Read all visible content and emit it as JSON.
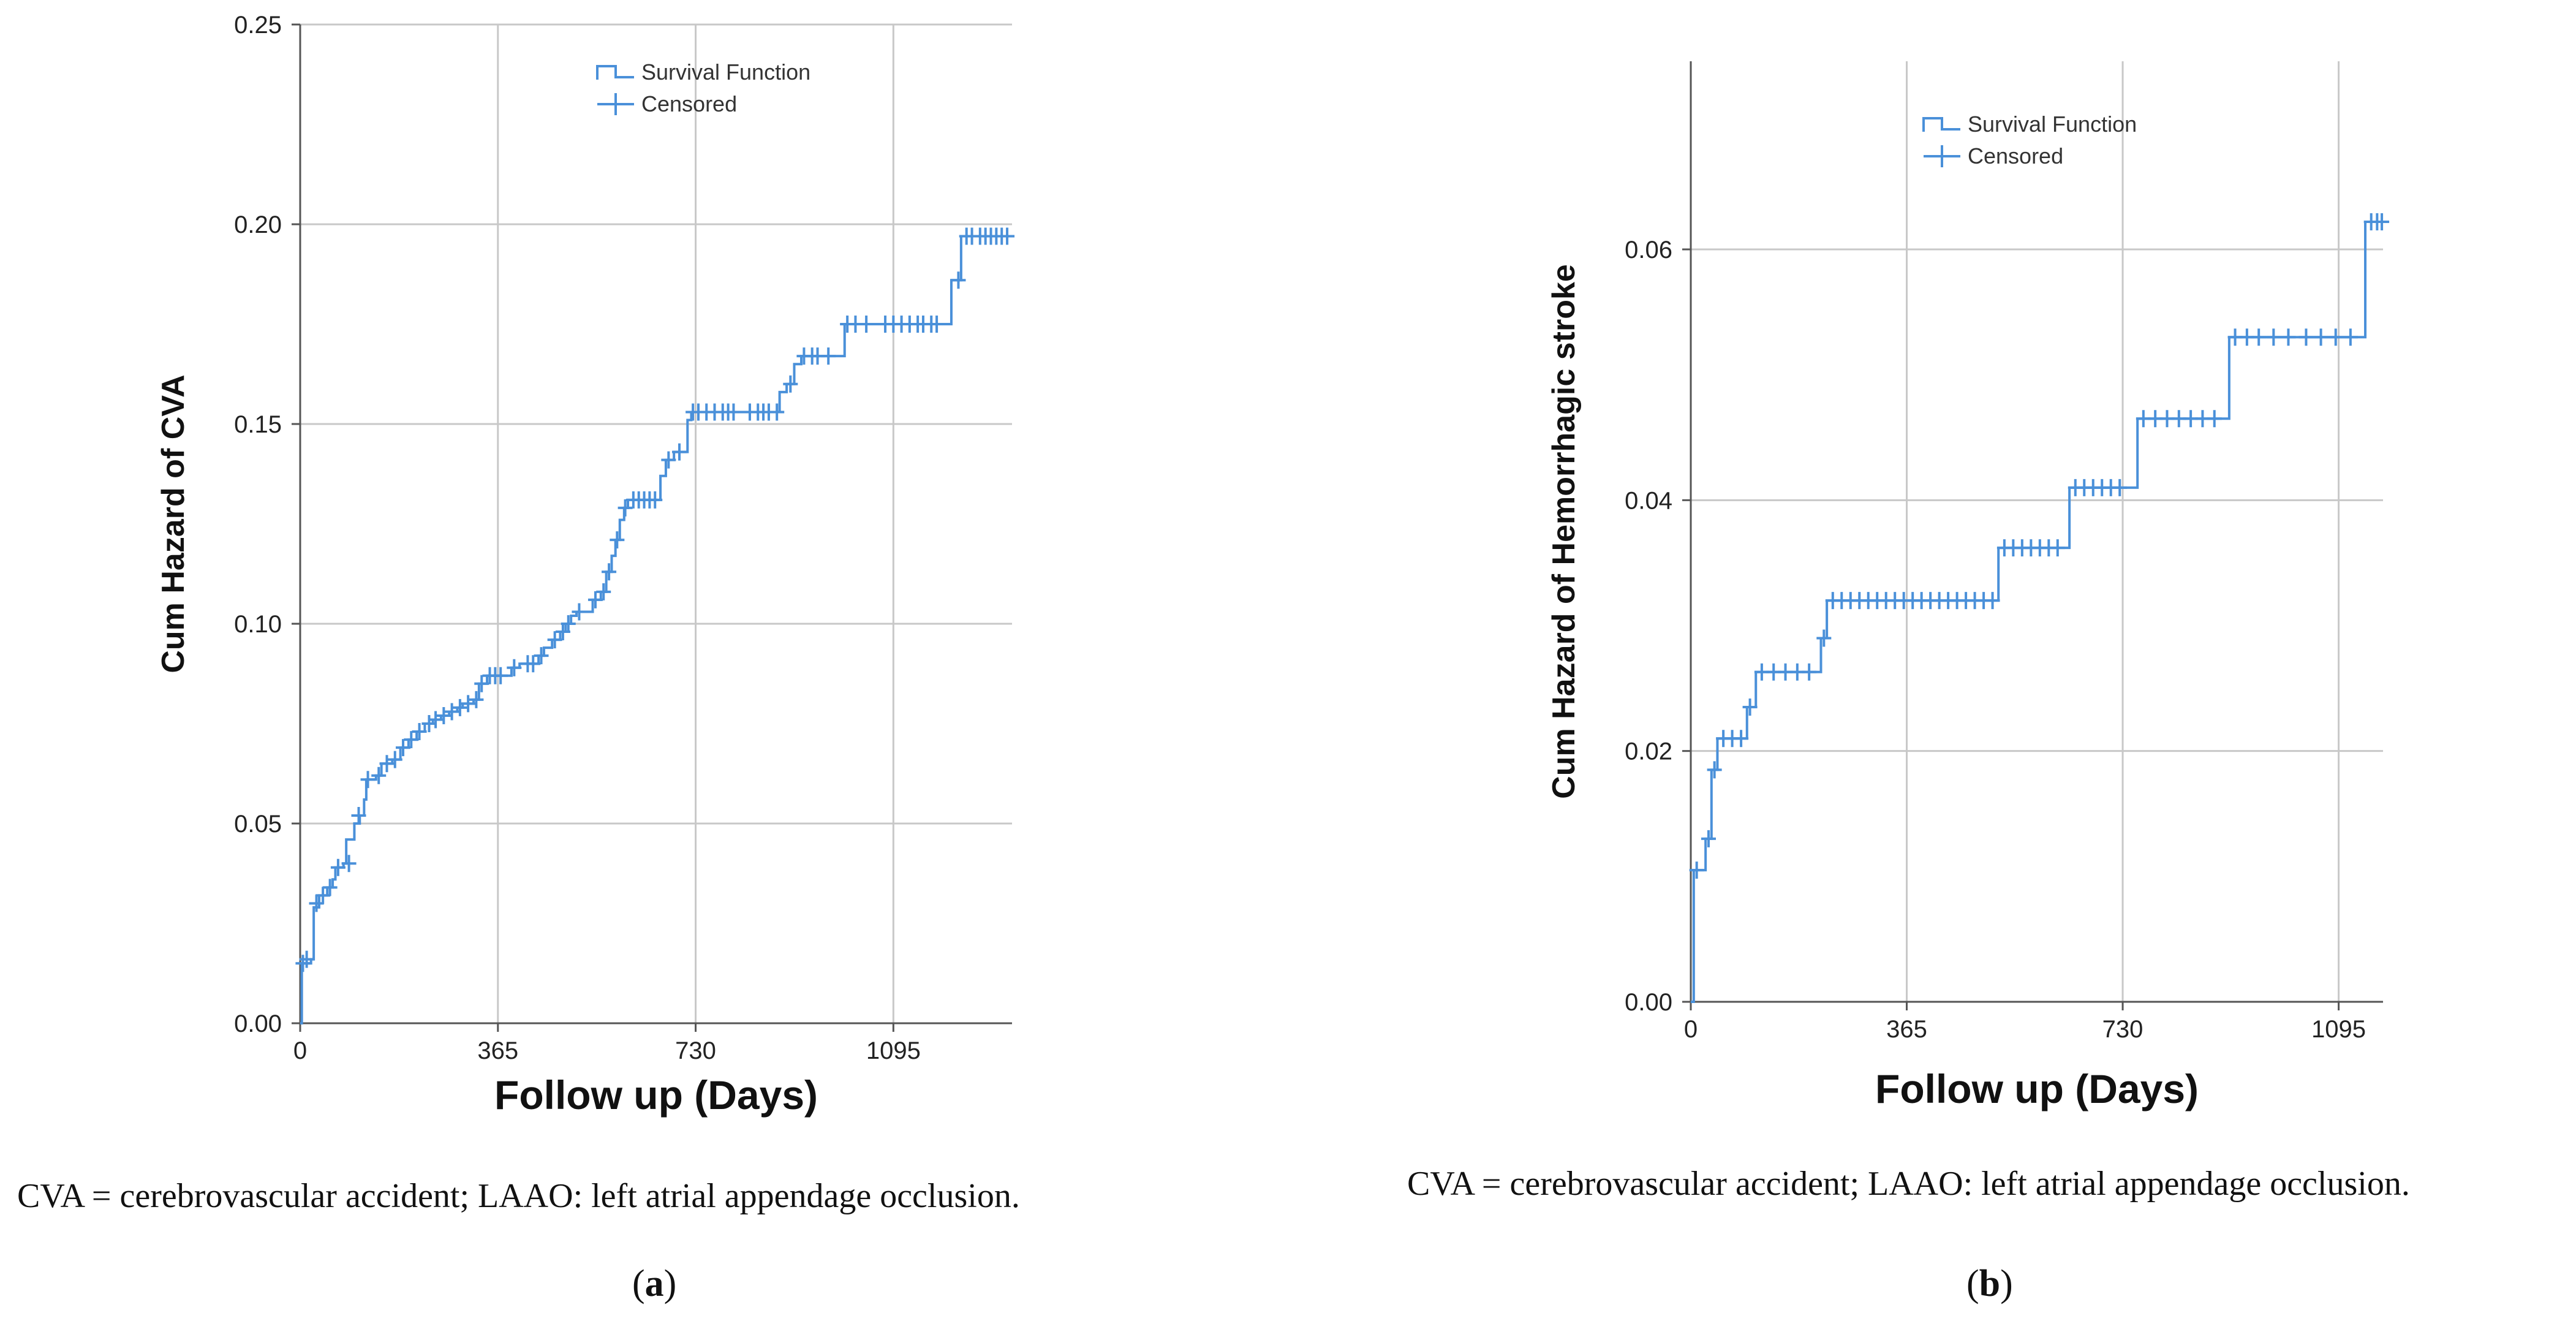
{
  "chart_data": [
    {
      "type": "line",
      "step": true,
      "title": "",
      "xlabel": "Follow up (Days)",
      "ylabel": "Cum Hazard of CVA",
      "xlim": [
        0,
        1314
      ],
      "ylim": [
        0,
        0.25
      ],
      "xticks": [
        0,
        365,
        730,
        1095
      ],
      "xtick_labels": [
        "0",
        "365",
        "730",
        "1095"
      ],
      "yticks": [
        0,
        0.05,
        0.1,
        0.15,
        0.2,
        0.25
      ],
      "ytick_labels": [
        "0.00",
        "0.05",
        "0.10",
        "0.15",
        "0.20",
        "0.25"
      ],
      "grid": true,
      "legend": {
        "position": "top-center",
        "entries": [
          "Survival Function",
          "Censored"
        ]
      },
      "series": [
        {
          "name": "Survival Function",
          "color": "#4a90d9",
          "points": [
            [
              0,
              0
            ],
            [
              3,
              0.015
            ],
            [
              20,
              0.016
            ],
            [
              25,
              0.029
            ],
            [
              35,
              0.032
            ],
            [
              50,
              0.034
            ],
            [
              60,
              0.036
            ],
            [
              65,
              0.039
            ],
            [
              80,
              0.04
            ],
            [
              85,
              0.046
            ],
            [
              100,
              0.05
            ],
            [
              110,
              0.052
            ],
            [
              118,
              0.056
            ],
            [
              122,
              0.061
            ],
            [
              140,
              0.062
            ],
            [
              150,
              0.065
            ],
            [
              170,
              0.066
            ],
            [
              185,
              0.069
            ],
            [
              200,
              0.071
            ],
            [
              215,
              0.073
            ],
            [
              230,
              0.075
            ],
            [
              245,
              0.076
            ],
            [
              260,
              0.077
            ],
            [
              275,
              0.078
            ],
            [
              290,
              0.079
            ],
            [
              300,
              0.08
            ],
            [
              320,
              0.081
            ],
            [
              330,
              0.085
            ],
            [
              345,
              0.087
            ],
            [
              390,
              0.089
            ],
            [
              405,
              0.09
            ],
            [
              440,
              0.092
            ],
            [
              450,
              0.094
            ],
            [
              465,
              0.096
            ],
            [
              480,
              0.098
            ],
            [
              490,
              0.1
            ],
            [
              500,
              0.102
            ],
            [
              510,
              0.103
            ],
            [
              540,
              0.106
            ],
            [
              555,
              0.108
            ],
            [
              565,
              0.113
            ],
            [
              575,
              0.117
            ],
            [
              582,
              0.121
            ],
            [
              590,
              0.126
            ],
            [
              598,
              0.129
            ],
            [
              605,
              0.131
            ],
            [
              665,
              0.137
            ],
            [
              675,
              0.141
            ],
            [
              690,
              0.143
            ],
            [
              715,
              0.151
            ],
            [
              722,
              0.153
            ],
            [
              885,
              0.158
            ],
            [
              898,
              0.16
            ],
            [
              912,
              0.165
            ],
            [
              925,
              0.167
            ],
            [
              1005,
              0.175
            ],
            [
              1202,
              0.186
            ],
            [
              1220,
              0.197
            ],
            [
              1314,
              0.197
            ]
          ]
        }
      ],
      "censored": [
        [
          5,
          0.015
        ],
        [
          12,
          0.016
        ],
        [
          30,
          0.03
        ],
        [
          42,
          0.032
        ],
        [
          55,
          0.034
        ],
        [
          70,
          0.039
        ],
        [
          90,
          0.04
        ],
        [
          108,
          0.052
        ],
        [
          125,
          0.061
        ],
        [
          145,
          0.062
        ],
        [
          160,
          0.065
        ],
        [
          175,
          0.066
        ],
        [
          190,
          0.069
        ],
        [
          205,
          0.071
        ],
        [
          220,
          0.073
        ],
        [
          238,
          0.075
        ],
        [
          250,
          0.076
        ],
        [
          265,
          0.077
        ],
        [
          280,
          0.078
        ],
        [
          295,
          0.079
        ],
        [
          310,
          0.08
        ],
        [
          325,
          0.081
        ],
        [
          335,
          0.085
        ],
        [
          350,
          0.087
        ],
        [
          360,
          0.087
        ],
        [
          370,
          0.087
        ],
        [
          395,
          0.089
        ],
        [
          420,
          0.09
        ],
        [
          430,
          0.09
        ],
        [
          445,
          0.092
        ],
        [
          470,
          0.096
        ],
        [
          485,
          0.098
        ],
        [
          495,
          0.1
        ],
        [
          515,
          0.103
        ],
        [
          545,
          0.106
        ],
        [
          560,
          0.108
        ],
        [
          570,
          0.113
        ],
        [
          585,
          0.121
        ],
        [
          600,
          0.129
        ],
        [
          615,
          0.131
        ],
        [
          625,
          0.131
        ],
        [
          635,
          0.131
        ],
        [
          645,
          0.131
        ],
        [
          655,
          0.131
        ],
        [
          680,
          0.141
        ],
        [
          700,
          0.143
        ],
        [
          725,
          0.153
        ],
        [
          735,
          0.153
        ],
        [
          750,
          0.153
        ],
        [
          765,
          0.153
        ],
        [
          780,
          0.153
        ],
        [
          790,
          0.153
        ],
        [
          800,
          0.153
        ],
        [
          830,
          0.153
        ],
        [
          845,
          0.153
        ],
        [
          855,
          0.153
        ],
        [
          865,
          0.153
        ],
        [
          880,
          0.153
        ],
        [
          905,
          0.16
        ],
        [
          930,
          0.167
        ],
        [
          945,
          0.167
        ],
        [
          955,
          0.167
        ],
        [
          975,
          0.167
        ],
        [
          1010,
          0.175
        ],
        [
          1025,
          0.175
        ],
        [
          1045,
          0.175
        ],
        [
          1080,
          0.175
        ],
        [
          1095,
          0.175
        ],
        [
          1110,
          0.175
        ],
        [
          1125,
          0.175
        ],
        [
          1140,
          0.175
        ],
        [
          1150,
          0.175
        ],
        [
          1165,
          0.175
        ],
        [
          1175,
          0.175
        ],
        [
          1215,
          0.186
        ],
        [
          1230,
          0.197
        ],
        [
          1240,
          0.197
        ],
        [
          1255,
          0.197
        ],
        [
          1265,
          0.197
        ],
        [
          1275,
          0.197
        ],
        [
          1285,
          0.197
        ],
        [
          1295,
          0.197
        ],
        [
          1305,
          0.197
        ]
      ]
    },
    {
      "type": "line",
      "step": true,
      "title": "",
      "xlabel": "Follow up (Days)",
      "ylabel": "Cum Hazard of Hemorrhagic stroke",
      "xlim": [
        0,
        1170
      ],
      "ylim": [
        0,
        0.075
      ],
      "xticks": [
        0,
        365,
        730,
        1095
      ],
      "xtick_labels": [
        "0",
        "365",
        "730",
        "1095"
      ],
      "yticks": [
        0,
        0.02,
        0.04,
        0.06
      ],
      "ytick_labels": [
        "0.00",
        "0.02",
        "0.04",
        "0.06"
      ],
      "grid": true,
      "legend": {
        "position": "top-center",
        "entries": [
          "Survival Function",
          "Censored"
        ]
      },
      "series": [
        {
          "name": "Survival Function",
          "color": "#4a90d9",
          "points": [
            [
              0,
              0
            ],
            [
              5,
              0.0105
            ],
            [
              25,
              0.013
            ],
            [
              35,
              0.0185
            ],
            [
              45,
              0.021
            ],
            [
              95,
              0.0235
            ],
            [
              110,
              0.0263
            ],
            [
              220,
              0.029
            ],
            [
              230,
              0.032
            ],
            [
              520,
              0.0362
            ],
            [
              640,
              0.041
            ],
            [
              755,
              0.0465
            ],
            [
              910,
              0.053
            ],
            [
              1140,
              0.0622
            ],
            [
              1170,
              0.0622
            ]
          ]
        }
      ],
      "censored": [
        [
          10,
          0.0105
        ],
        [
          30,
          0.013
        ],
        [
          40,
          0.0185
        ],
        [
          55,
          0.021
        ],
        [
          70,
          0.021
        ],
        [
          85,
          0.021
        ],
        [
          100,
          0.0235
        ],
        [
          120,
          0.0263
        ],
        [
          140,
          0.0263
        ],
        [
          160,
          0.0263
        ],
        [
          180,
          0.0263
        ],
        [
          200,
          0.0263
        ],
        [
          225,
          0.029
        ],
        [
          240,
          0.032
        ],
        [
          255,
          0.032
        ],
        [
          270,
          0.032
        ],
        [
          285,
          0.032
        ],
        [
          300,
          0.032
        ],
        [
          315,
          0.032
        ],
        [
          330,
          0.032
        ],
        [
          345,
          0.032
        ],
        [
          360,
          0.032
        ],
        [
          375,
          0.032
        ],
        [
          390,
          0.032
        ],
        [
          405,
          0.032
        ],
        [
          420,
          0.032
        ],
        [
          435,
          0.032
        ],
        [
          450,
          0.032
        ],
        [
          465,
          0.032
        ],
        [
          480,
          0.032
        ],
        [
          495,
          0.032
        ],
        [
          510,
          0.032
        ],
        [
          530,
          0.0362
        ],
        [
          545,
          0.0362
        ],
        [
          560,
          0.0362
        ],
        [
          575,
          0.0362
        ],
        [
          590,
          0.0362
        ],
        [
          605,
          0.0362
        ],
        [
          620,
          0.0362
        ],
        [
          650,
          0.041
        ],
        [
          665,
          0.041
        ],
        [
          680,
          0.041
        ],
        [
          695,
          0.041
        ],
        [
          710,
          0.041
        ],
        [
          725,
          0.041
        ],
        [
          765,
          0.0465
        ],
        [
          785,
          0.0465
        ],
        [
          805,
          0.0465
        ],
        [
          825,
          0.0465
        ],
        [
          845,
          0.0465
        ],
        [
          865,
          0.0465
        ],
        [
          885,
          0.0465
        ],
        [
          920,
          0.053
        ],
        [
          940,
          0.053
        ],
        [
          960,
          0.053
        ],
        [
          985,
          0.053
        ],
        [
          1010,
          0.053
        ],
        [
          1040,
          0.053
        ],
        [
          1065,
          0.053
        ],
        [
          1090,
          0.053
        ],
        [
          1115,
          0.053
        ],
        [
          1150,
          0.0622
        ],
        [
          1160,
          0.0622
        ],
        [
          1168,
          0.0622
        ]
      ]
    }
  ],
  "notes": {
    "a": "CVA = cerebrovascular accident; LAAO: left atrial appendage occlusion.",
    "b": "CVA = cerebrovascular accident; LAAO: left atrial appendage occlusion."
  },
  "panel_labels": {
    "a": "a",
    "b": "b"
  },
  "colors": {
    "line": "#4a90d9",
    "grid": "#c8c8c8",
    "axis": "#555555"
  }
}
